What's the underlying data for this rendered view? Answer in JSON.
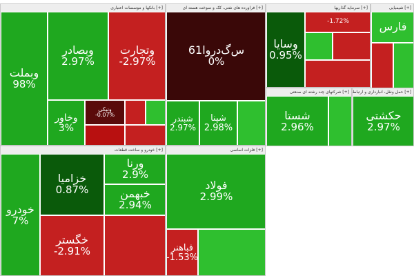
{
  "colors": {
    "strong_up": "#1fa81f",
    "up": "#2fbf2f",
    "weak_up": "#7ed37e",
    "dark_up": "#0a5a0a",
    "strong_down": "#b81010",
    "down": "#c42020",
    "dark_down": "#5a0a0a",
    "flat": "#3a0808"
  },
  "chart_data": {
    "type": "heatmap",
    "sectors": [
      {
        "name": "[+] بانکها و موسسات اعتباری",
        "tiles": [
          {
            "name": "وبملت",
            "change": "98%"
          },
          {
            "name": "وبصادر",
            "change": "2.97%"
          },
          {
            "name": "وتجارت",
            "change": "-2.97%"
          },
          {
            "name": "وخاور",
            "change": "3%"
          },
          {
            "name": "ونیکی",
            "change": "-0.07%"
          }
        ]
      },
      {
        "name": "[+] فراورده های نفتی، کک و سوخت هسته ای",
        "tiles": [
          {
            "name": "س‌گ‌دروا61",
            "change": "0%"
          },
          {
            "name": "شبندر",
            "change": "2.97%"
          },
          {
            "name": "شپنا",
            "change": "2.98%"
          }
        ]
      },
      {
        "name": "[+] سرمایه گذاریها",
        "tiles": [
          {
            "name": "وسایا",
            "change": "0.95%"
          },
          {
            "name": "",
            "change": "-1.72%"
          }
        ]
      },
      {
        "name": "[+] شیمیایی",
        "tiles": [
          {
            "name": "فارس",
            "change": ""
          }
        ]
      },
      {
        "name": "[+] شرکتهای چند رشته ای صنعتی",
        "tiles": [
          {
            "name": "شستا",
            "change": "2.96%"
          }
        ]
      },
      {
        "name": "[+] حمل ونقل، انبارداری و ارتباطات",
        "tiles": [
          {
            "name": "حکشتی",
            "change": "2.97%"
          }
        ]
      },
      {
        "name": "[+] خودرو و ساخت قطعات",
        "tiles": [
          {
            "name": "خودرو",
            "change": "7%"
          },
          {
            "name": "خزامیا",
            "change": "0.87%"
          },
          {
            "name": "ورنا",
            "change": "2.9%"
          },
          {
            "name": "خبهمن",
            "change": "2.94%"
          },
          {
            "name": "خگستر",
            "change": "-2.91%"
          }
        ]
      },
      {
        "name": "[+] فلزات اساسی",
        "tiles": [
          {
            "name": "فولاد",
            "change": "2.99%"
          },
          {
            "name": "فباهنر",
            "change": "-1.53%"
          }
        ]
      }
    ]
  }
}
